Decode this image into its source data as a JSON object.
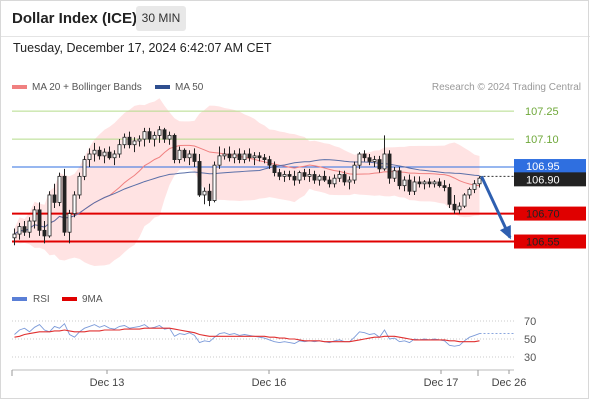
{
  "header": {
    "title": "Dollar Index (ICE)",
    "timeframe": "30 MIN",
    "datetime": "Tuesday, December 17, 2024 6:42:07 AM CET"
  },
  "legend": {
    "ma20_label": "MA 20 + Bollinger Bands",
    "ma50_label": "MA 50",
    "copyright": "Research © 2024 Trading Central",
    "rsi_label": "RSI",
    "rsi9ma_label": "9MA"
  },
  "colors": {
    "up_candle": "#ffffff",
    "down_candle": "#222222",
    "bollinger_fill": "#ffd9d9",
    "ma20": "#f08080",
    "ma50": "#5a6fa8",
    "resistance": "#b5dc8a",
    "support": "#e00000",
    "current_price": "#2f6fe0",
    "arrow": "#2e5fb0",
    "rsi": "#7b9ad9",
    "rsi_ma": "#e03030"
  },
  "chart_data": [
    {
      "type": "candlestick",
      "x_labels": [
        "Dec 13",
        "Dec 16",
        "Dec 17",
        "Dec 26"
      ],
      "ylim": [
        106.44,
        107.31
      ],
      "series": [
        {
          "name": "MA 20 + Bollinger Bands"
        },
        {
          "name": "MA 50"
        }
      ],
      "candles": [
        [
          106.57,
          106.62,
          106.53,
          106.59
        ],
        [
          106.59,
          106.65,
          106.56,
          106.63
        ],
        [
          106.63,
          106.66,
          106.58,
          106.6
        ],
        [
          106.6,
          106.68,
          106.57,
          106.66
        ],
        [
          106.66,
          106.74,
          106.62,
          106.72
        ],
        [
          106.72,
          106.76,
          106.58,
          106.61
        ],
        [
          106.61,
          106.66,
          106.54,
          106.58
        ],
        [
          106.58,
          106.82,
          106.57,
          106.8
        ],
        [
          106.8,
          106.86,
          106.73,
          106.76
        ],
        [
          106.76,
          106.92,
          106.74,
          106.9
        ],
        [
          106.9,
          106.94,
          106.58,
          106.6
        ],
        [
          106.6,
          106.72,
          106.54,
          106.7
        ],
        [
          106.7,
          106.82,
          106.68,
          106.8
        ],
        [
          106.8,
          106.92,
          106.78,
          106.9
        ],
        [
          106.9,
          107.01,
          106.88,
          106.99
        ],
        [
          106.99,
          107.05,
          106.95,
          107.02
        ],
        [
          107.02,
          107.08,
          106.98,
          107.04
        ],
        [
          107.04,
          107.06,
          106.99,
          107.01
        ],
        [
          107.01,
          107.05,
          106.97,
          107.03
        ],
        [
          107.03,
          107.06,
          106.99,
          107.0
        ],
        [
          107.0,
          107.04,
          106.96,
          107.02
        ],
        [
          107.02,
          107.1,
          107.0,
          107.07
        ],
        [
          107.07,
          107.13,
          107.05,
          107.11
        ],
        [
          107.11,
          107.14,
          107.05,
          107.07
        ],
        [
          107.07,
          107.11,
          107.03,
          107.09
        ],
        [
          107.09,
          107.12,
          107.06,
          107.1
        ],
        [
          107.1,
          107.16,
          107.06,
          107.14
        ],
        [
          107.14,
          107.16,
          107.08,
          107.1
        ],
        [
          107.1,
          107.14,
          107.06,
          107.12
        ],
        [
          107.12,
          107.17,
          107.08,
          107.15
        ],
        [
          107.15,
          107.16,
          107.08,
          107.1
        ],
        [
          107.1,
          107.14,
          107.07,
          107.12
        ],
        [
          107.12,
          107.13,
          106.97,
          106.99
        ],
        [
          106.99,
          107.06,
          106.97,
          107.04
        ],
        [
          107.04,
          107.05,
          106.98,
          107.0
        ],
        [
          107.0,
          107.04,
          106.96,
          107.02
        ],
        [
          107.02,
          107.05,
          106.95,
          106.98
        ],
        [
          106.98,
          107.02,
          106.79,
          106.8
        ],
        [
          106.8,
          106.84,
          106.75,
          106.82
        ],
        [
          106.82,
          106.86,
          106.74,
          106.77
        ],
        [
          106.77,
          106.98,
          106.76,
          106.96
        ],
        [
          106.96,
          107.06,
          106.94,
          107.01
        ],
        [
          107.01,
          107.05,
          106.99,
          107.02
        ],
        [
          107.02,
          107.06,
          106.98,
          107.0
        ],
        [
          107.0,
          107.04,
          106.97,
          107.02
        ],
        [
          107.02,
          107.05,
          106.97,
          106.99
        ],
        [
          106.99,
          107.04,
          106.97,
          107.02
        ],
        [
          107.02,
          107.05,
          106.98,
          107.0
        ],
        [
          107.0,
          107.03,
          106.96,
          107.01
        ],
        [
          107.01,
          107.03,
          106.98,
          107.0
        ],
        [
          107.0,
          107.02,
          106.97,
          106.99
        ],
        [
          106.99,
          107.01,
          106.94,
          106.96
        ],
        [
          106.96,
          106.98,
          106.9,
          106.92
        ],
        [
          106.92,
          106.94,
          106.88,
          106.9
        ],
        [
          106.9,
          106.93,
          106.87,
          106.91
        ],
        [
          106.91,
          106.93,
          106.88,
          106.9
        ],
        [
          106.9,
          106.93,
          106.85,
          106.88
        ],
        [
          106.88,
          106.93,
          106.86,
          106.92
        ],
        [
          106.92,
          106.94,
          106.88,
          106.9
        ],
        [
          106.9,
          106.94,
          106.87,
          106.91
        ],
        [
          106.91,
          106.93,
          106.86,
          106.88
        ],
        [
          106.88,
          106.91,
          106.85,
          106.9
        ],
        [
          106.9,
          106.93,
          106.87,
          106.88
        ],
        [
          106.88,
          106.9,
          106.84,
          106.86
        ],
        [
          106.86,
          106.91,
          106.84,
          106.89
        ],
        [
          106.89,
          106.93,
          106.87,
          106.91
        ],
        [
          106.91,
          106.93,
          106.85,
          106.87
        ],
        [
          106.87,
          106.9,
          106.83,
          106.88
        ],
        [
          106.88,
          106.98,
          106.86,
          106.96
        ],
        [
          106.96,
          107.03,
          106.94,
          107.02
        ],
        [
          107.02,
          107.04,
          106.98,
          107.0
        ],
        [
          107.0,
          107.02,
          106.96,
          106.98
        ],
        [
          106.98,
          107.01,
          106.95,
          106.99
        ],
        [
          106.99,
          107.01,
          106.92,
          106.94
        ],
        [
          106.94,
          107.12,
          106.93,
          107.02
        ],
        [
          107.02,
          107.04,
          106.86,
          106.89
        ],
        [
          106.89,
          106.95,
          106.87,
          106.93
        ],
        [
          106.93,
          106.95,
          106.83,
          106.85
        ],
        [
          106.85,
          106.9,
          106.82,
          106.88
        ],
        [
          106.88,
          106.91,
          106.8,
          106.82
        ],
        [
          106.82,
          106.9,
          106.8,
          106.87
        ],
        [
          106.87,
          106.9,
          106.84,
          106.86
        ],
        [
          106.86,
          106.88,
          106.83,
          106.87
        ],
        [
          106.87,
          106.89,
          106.84,
          106.86
        ],
        [
          106.86,
          106.88,
          106.84,
          106.87
        ],
        [
          106.87,
          106.89,
          106.84,
          106.85
        ],
        [
          106.85,
          106.88,
          106.82,
          106.84
        ],
        [
          106.84,
          106.86,
          106.73,
          106.75
        ],
        [
          106.75,
          106.8,
          106.7,
          106.72
        ],
        [
          106.72,
          106.76,
          106.7,
          106.74
        ],
        [
          106.74,
          106.81,
          106.73,
          106.8
        ],
        [
          106.8,
          106.84,
          106.78,
          106.83
        ],
        [
          106.83,
          106.88,
          106.81,
          106.86
        ],
        [
          106.86,
          106.9,
          106.84,
          106.89
        ]
      ],
      "current_price": 106.9,
      "levels": [
        {
          "value": 107.25,
          "label": "107.25",
          "kind": "resistance"
        },
        {
          "value": 107.1,
          "label": "107.10",
          "kind": "resistance"
        },
        {
          "value": 106.95,
          "label": "106.95",
          "kind": "current"
        },
        {
          "value": 106.9,
          "label": "106.90",
          "kind": "last"
        },
        {
          "value": 106.7,
          "label": "106.70",
          "kind": "support"
        },
        {
          "value": 106.55,
          "label": "106.55",
          "kind": "support"
        }
      ],
      "forecast_arrow": {
        "from_value": 106.9,
        "to_value": 106.55
      }
    },
    {
      "type": "line",
      "series": [
        {
          "name": "RSI"
        },
        {
          "name": "9MA"
        }
      ],
      "ylim": [
        20,
        80
      ],
      "y_ticks": [
        70,
        50,
        30
      ],
      "y_tick_labels": [
        "70",
        "50",
        "30"
      ],
      "rsi": [
        55,
        60,
        62,
        58,
        63,
        66,
        60,
        58,
        64,
        62,
        67,
        55,
        52,
        58,
        62,
        64,
        66,
        63,
        65,
        62,
        61,
        64,
        65,
        62,
        63,
        64,
        66,
        62,
        63,
        65,
        61,
        62,
        53,
        56,
        55,
        57,
        54,
        46,
        48,
        47,
        52,
        56,
        57,
        55,
        56,
        54,
        55,
        54,
        53,
        52,
        51,
        49,
        47,
        46,
        47,
        46,
        45,
        48,
        47,
        48,
        47,
        48,
        47,
        46,
        48,
        49,
        47,
        47,
        52,
        58,
        57,
        55,
        56,
        52,
        60,
        50,
        51,
        47,
        48,
        46,
        50,
        49,
        50,
        49,
        50,
        49,
        48,
        43,
        42,
        43,
        48,
        52,
        54,
        56
      ],
      "rsi_ma": [
        52,
        53,
        55,
        56,
        57,
        58,
        58,
        58,
        59,
        59,
        60,
        59,
        58,
        58,
        58,
        59,
        59,
        59,
        60,
        60,
        60,
        60,
        61,
        61,
        61,
        61,
        62,
        62,
        62,
        62,
        62,
        62,
        61,
        60,
        59,
        58,
        57,
        55,
        54,
        53,
        53,
        53,
        53,
        53,
        53,
        53,
        53,
        53,
        53,
        53,
        53,
        52,
        52,
        51,
        51,
        50,
        50,
        49,
        48,
        48,
        48,
        48,
        47,
        47,
        47,
        47,
        47,
        47,
        48,
        49,
        50,
        51,
        52,
        52,
        53,
        53,
        53,
        52,
        51,
        50,
        49,
        49,
        49,
        49,
        49,
        49,
        49,
        48,
        48,
        47,
        47,
        47,
        47,
        48
      ]
    }
  ]
}
